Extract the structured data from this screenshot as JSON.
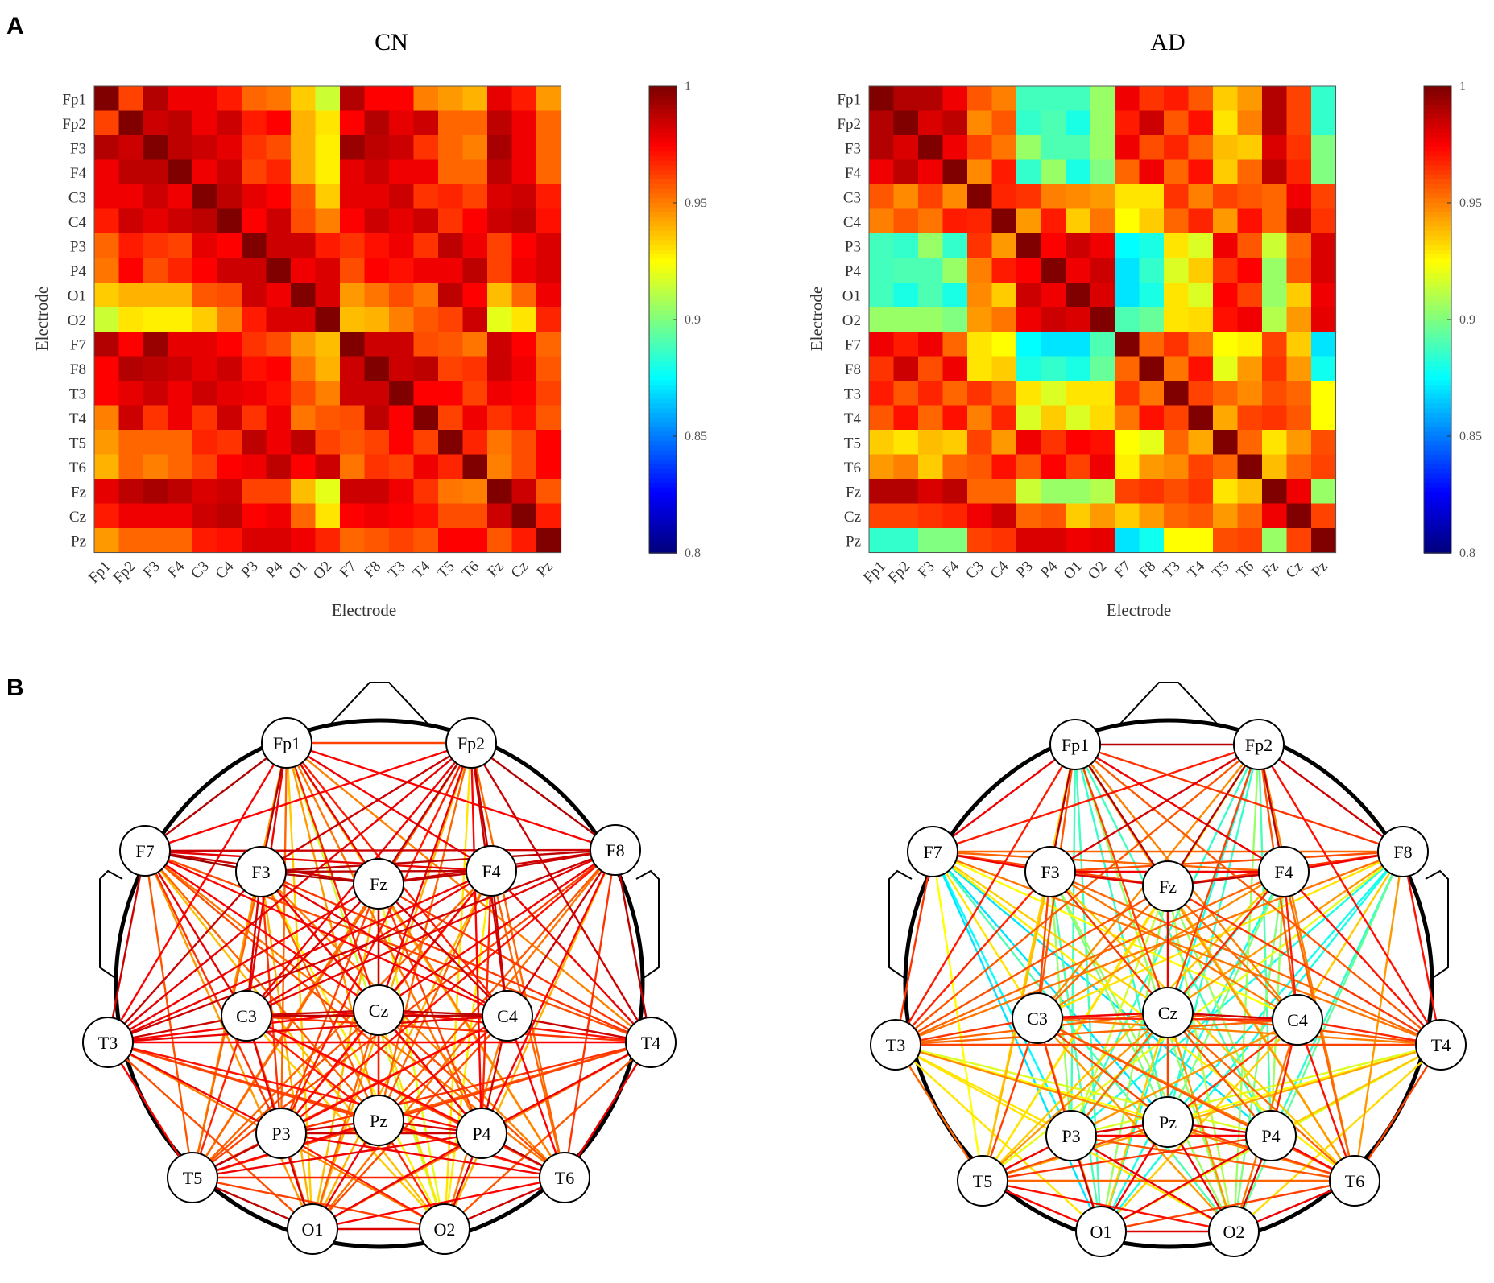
{
  "panel_labels": {
    "a": "A",
    "b": "B"
  },
  "chart_data": [
    {
      "type": "heatmap",
      "id": "cn-heatmap",
      "title": "CN",
      "xlabel": "Electrode",
      "ylabel": "Electrode",
      "labels": [
        "Fp1",
        "Fp2",
        "F3",
        "F4",
        "C3",
        "C4",
        "P3",
        "P4",
        "O1",
        "O2",
        "F7",
        "F8",
        "T3",
        "T4",
        "T5",
        "T6",
        "Fz",
        "Cz",
        "Pz"
      ],
      "clim": [
        0.8,
        1
      ],
      "colormap": "jet",
      "colorbar_ticks": [
        "1",
        "0.95",
        "0.9",
        "0.85",
        "0.8"
      ],
      "matrix": [
        [
          1.0,
          0.962,
          0.99,
          0.978,
          0.978,
          0.97,
          0.955,
          0.952,
          0.935,
          0.915,
          0.99,
          0.975,
          0.975,
          0.95,
          0.945,
          0.94,
          0.98,
          0.97,
          0.945
        ],
        [
          0.962,
          1.0,
          0.985,
          0.988,
          0.978,
          0.985,
          0.97,
          0.975,
          0.94,
          0.93,
          0.975,
          0.99,
          0.98,
          0.985,
          0.955,
          0.955,
          0.988,
          0.978,
          0.955
        ],
        [
          0.99,
          0.985,
          1.0,
          0.988,
          0.985,
          0.98,
          0.965,
          0.96,
          0.94,
          0.928,
          0.995,
          0.988,
          0.985,
          0.965,
          0.955,
          0.95,
          0.992,
          0.978,
          0.955
        ],
        [
          0.978,
          0.988,
          0.988,
          1.0,
          0.978,
          0.985,
          0.962,
          0.968,
          0.94,
          0.928,
          0.98,
          0.985,
          0.978,
          0.978,
          0.955,
          0.955,
          0.988,
          0.978,
          0.955
        ],
        [
          0.978,
          0.978,
          0.985,
          0.978,
          1.0,
          0.988,
          0.98,
          0.975,
          0.958,
          0.935,
          0.98,
          0.98,
          0.985,
          0.965,
          0.968,
          0.962,
          0.982,
          0.985,
          0.97
        ],
        [
          0.97,
          0.985,
          0.98,
          0.985,
          0.988,
          1.0,
          0.975,
          0.985,
          0.96,
          0.95,
          0.975,
          0.985,
          0.98,
          0.985,
          0.965,
          0.975,
          0.985,
          0.988,
          0.972
        ],
        [
          0.955,
          0.97,
          0.965,
          0.962,
          0.98,
          0.975,
          1.0,
          0.985,
          0.985,
          0.97,
          0.965,
          0.972,
          0.978,
          0.965,
          0.988,
          0.978,
          0.962,
          0.975,
          0.982
        ],
        [
          0.952,
          0.975,
          0.96,
          0.968,
          0.975,
          0.985,
          0.985,
          1.0,
          0.978,
          0.982,
          0.96,
          0.975,
          0.972,
          0.978,
          0.978,
          0.988,
          0.962,
          0.978,
          0.982
        ],
        [
          0.935,
          0.94,
          0.94,
          0.94,
          0.958,
          0.96,
          0.985,
          0.978,
          1.0,
          0.982,
          0.945,
          0.952,
          0.96,
          0.952,
          0.988,
          0.975,
          0.938,
          0.955,
          0.978
        ],
        [
          0.915,
          0.93,
          0.928,
          0.928,
          0.935,
          0.95,
          0.97,
          0.982,
          0.982,
          1.0,
          0.938,
          0.94,
          0.95,
          0.958,
          0.962,
          0.985,
          0.92,
          0.93,
          0.968
        ],
        [
          0.99,
          0.975,
          0.995,
          0.98,
          0.98,
          0.975,
          0.965,
          0.96,
          0.945,
          0.938,
          1.0,
          0.985,
          0.985,
          0.96,
          0.958,
          0.952,
          0.985,
          0.975,
          0.955
        ],
        [
          0.975,
          0.99,
          0.988,
          0.985,
          0.98,
          0.985,
          0.972,
          0.975,
          0.952,
          0.94,
          0.985,
          1.0,
          0.985,
          0.988,
          0.962,
          0.965,
          0.985,
          0.978,
          0.958
        ],
        [
          0.975,
          0.98,
          0.985,
          0.978,
          0.985,
          0.98,
          0.978,
          0.972,
          0.96,
          0.95,
          0.985,
          0.985,
          1.0,
          0.975,
          0.975,
          0.962,
          0.978,
          0.975,
          0.962
        ],
        [
          0.95,
          0.985,
          0.965,
          0.978,
          0.965,
          0.985,
          0.965,
          0.978,
          0.952,
          0.958,
          0.96,
          0.988,
          0.975,
          1.0,
          0.962,
          0.978,
          0.965,
          0.972,
          0.958
        ],
        [
          0.945,
          0.955,
          0.955,
          0.955,
          0.968,
          0.965,
          0.988,
          0.978,
          0.988,
          0.962,
          0.958,
          0.962,
          0.975,
          0.962,
          1.0,
          0.968,
          0.952,
          0.96,
          0.975
        ],
        [
          0.94,
          0.955,
          0.95,
          0.955,
          0.962,
          0.975,
          0.978,
          0.988,
          0.975,
          0.985,
          0.952,
          0.965,
          0.962,
          0.978,
          0.968,
          1.0,
          0.95,
          0.96,
          0.975
        ],
        [
          0.98,
          0.988,
          0.992,
          0.988,
          0.982,
          0.985,
          0.962,
          0.962,
          0.938,
          0.92,
          0.985,
          0.985,
          0.978,
          0.965,
          0.952,
          0.95,
          1.0,
          0.985,
          0.958
        ],
        [
          0.97,
          0.978,
          0.978,
          0.978,
          0.985,
          0.988,
          0.975,
          0.978,
          0.955,
          0.93,
          0.975,
          0.978,
          0.975,
          0.972,
          0.96,
          0.96,
          0.985,
          1.0,
          0.97
        ],
        [
          0.945,
          0.955,
          0.955,
          0.955,
          0.97,
          0.972,
          0.982,
          0.982,
          0.978,
          0.968,
          0.955,
          0.958,
          0.962,
          0.958,
          0.975,
          0.975,
          0.958,
          0.97,
          1.0
        ]
      ]
    },
    {
      "type": "heatmap",
      "id": "ad-heatmap",
      "title": "AD",
      "xlabel": "Electrode",
      "ylabel": "Electrode",
      "labels": [
        "Fp1",
        "Fp2",
        "F3",
        "F4",
        "C3",
        "C4",
        "P3",
        "P4",
        "O1",
        "O2",
        "F7",
        "F8",
        "T3",
        "T4",
        "T5",
        "T6",
        "Fz",
        "Cz",
        "Pz"
      ],
      "clim": [
        0.8,
        1
      ],
      "colormap": "jet",
      "colorbar_ticks": [
        "1",
        "0.95",
        "0.9",
        "0.85",
        "0.8"
      ],
      "matrix": [
        [
          1.0,
          0.99,
          0.99,
          0.978,
          0.958,
          0.95,
          0.888,
          0.888,
          0.888,
          0.905,
          0.978,
          0.965,
          0.97,
          0.958,
          0.935,
          0.945,
          0.99,
          0.962,
          0.885
        ],
        [
          0.99,
          1.0,
          0.982,
          0.988,
          0.948,
          0.958,
          0.885,
          0.89,
          0.88,
          0.905,
          0.97,
          0.985,
          0.958,
          0.972,
          0.93,
          0.95,
          0.99,
          0.962,
          0.885
        ],
        [
          0.99,
          0.982,
          1.0,
          0.978,
          0.962,
          0.952,
          0.905,
          0.89,
          0.89,
          0.905,
          0.978,
          0.96,
          0.968,
          0.955,
          0.938,
          0.935,
          0.982,
          0.965,
          0.9
        ],
        [
          0.978,
          0.988,
          0.978,
          1.0,
          0.948,
          0.97,
          0.885,
          0.905,
          0.88,
          0.9,
          0.955,
          0.978,
          0.955,
          0.972,
          0.935,
          0.955,
          0.988,
          0.968,
          0.9
        ],
        [
          0.958,
          0.948,
          0.962,
          0.948,
          1.0,
          0.968,
          0.965,
          0.95,
          0.948,
          0.945,
          0.93,
          0.93,
          0.965,
          0.95,
          0.962,
          0.958,
          0.955,
          0.978,
          0.962
        ],
        [
          0.95,
          0.958,
          0.952,
          0.97,
          0.968,
          1.0,
          0.945,
          0.97,
          0.935,
          0.952,
          0.925,
          0.935,
          0.955,
          0.968,
          0.945,
          0.972,
          0.955,
          0.985,
          0.965
        ],
        [
          0.888,
          0.885,
          0.905,
          0.885,
          0.965,
          0.945,
          1.0,
          0.975,
          0.985,
          0.978,
          0.875,
          0.88,
          0.93,
          0.918,
          0.978,
          0.958,
          0.915,
          0.955,
          0.982
        ],
        [
          0.888,
          0.89,
          0.89,
          0.905,
          0.95,
          0.97,
          0.975,
          1.0,
          0.978,
          0.985,
          0.87,
          0.885,
          0.918,
          0.935,
          0.965,
          0.975,
          0.905,
          0.958,
          0.982
        ],
        [
          0.888,
          0.88,
          0.89,
          0.88,
          0.948,
          0.935,
          0.985,
          0.978,
          1.0,
          0.982,
          0.87,
          0.88,
          0.93,
          0.918,
          0.975,
          0.962,
          0.905,
          0.935,
          0.978
        ],
        [
          0.905,
          0.905,
          0.905,
          0.9,
          0.945,
          0.952,
          0.978,
          0.985,
          0.982,
          1.0,
          0.89,
          0.895,
          0.93,
          0.932,
          0.972,
          0.978,
          0.91,
          0.945,
          0.98
        ],
        [
          0.978,
          0.97,
          0.978,
          0.955,
          0.93,
          0.925,
          0.875,
          0.87,
          0.87,
          0.89,
          1.0,
          0.955,
          0.965,
          0.952,
          0.925,
          0.928,
          0.962,
          0.935,
          0.87
        ],
        [
          0.965,
          0.985,
          0.96,
          0.978,
          0.93,
          0.935,
          0.88,
          0.885,
          0.88,
          0.895,
          0.955,
          1.0,
          0.952,
          0.972,
          0.92,
          0.945,
          0.965,
          0.945,
          0.878
        ],
        [
          0.97,
          0.958,
          0.968,
          0.955,
          0.965,
          0.955,
          0.93,
          0.918,
          0.93,
          0.93,
          0.965,
          0.952,
          1.0,
          0.962,
          0.955,
          0.948,
          0.96,
          0.955,
          0.925
        ],
        [
          0.958,
          0.972,
          0.955,
          0.972,
          0.95,
          0.968,
          0.918,
          0.935,
          0.918,
          0.932,
          0.952,
          0.972,
          0.962,
          1.0,
          0.942,
          0.962,
          0.965,
          0.958,
          0.925
        ],
        [
          0.935,
          0.93,
          0.938,
          0.935,
          0.962,
          0.945,
          0.978,
          0.965,
          0.975,
          0.972,
          0.925,
          0.92,
          0.955,
          0.942,
          1.0,
          0.955,
          0.93,
          0.945,
          0.96
        ],
        [
          0.945,
          0.95,
          0.935,
          0.955,
          0.958,
          0.972,
          0.958,
          0.975,
          0.962,
          0.978,
          0.928,
          0.945,
          0.948,
          0.962,
          0.955,
          1.0,
          0.938,
          0.955,
          0.962
        ],
        [
          0.99,
          0.99,
          0.982,
          0.988,
          0.955,
          0.955,
          0.915,
          0.905,
          0.905,
          0.91,
          0.962,
          0.965,
          0.96,
          0.965,
          0.93,
          0.938,
          1.0,
          0.978,
          0.905
        ],
        [
          0.962,
          0.962,
          0.965,
          0.968,
          0.978,
          0.985,
          0.955,
          0.958,
          0.935,
          0.945,
          0.935,
          0.945,
          0.955,
          0.958,
          0.945,
          0.955,
          0.978,
          1.0,
          0.962
        ],
        [
          0.885,
          0.885,
          0.9,
          0.9,
          0.962,
          0.965,
          0.982,
          0.982,
          0.978,
          0.98,
          0.87,
          0.878,
          0.925,
          0.925,
          0.96,
          0.962,
          0.905,
          0.962,
          1.0
        ]
      ]
    },
    {
      "type": "network",
      "id": "cn-network",
      "description_source": "same correlation matrix as CN heatmap, edges coloured with jet colormap",
      "nodes": [
        "Fp1",
        "Fp2",
        "F7",
        "F3",
        "Fz",
        "F4",
        "F8",
        "T3",
        "C3",
        "Cz",
        "C4",
        "T4",
        "T5",
        "P3",
        "Pz",
        "P4",
        "T6",
        "O1",
        "O2"
      ]
    },
    {
      "type": "network",
      "id": "ad-network",
      "description_source": "same correlation matrix as AD heatmap, edges coloured with jet colormap",
      "nodes": [
        "Fp1",
        "Fp2",
        "F7",
        "F3",
        "Fz",
        "F4",
        "F8",
        "T3",
        "C3",
        "Cz",
        "C4",
        "T4",
        "T5",
        "P3",
        "Pz",
        "P4",
        "T6",
        "O1",
        "O2"
      ]
    }
  ]
}
